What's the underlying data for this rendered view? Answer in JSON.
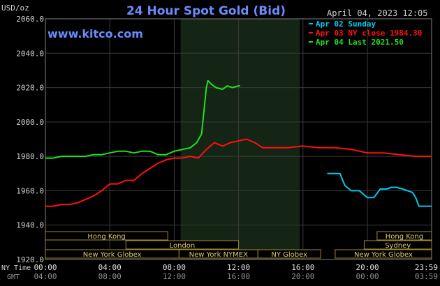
{
  "chart_data": {
    "type": "line",
    "title": "24 Hour Spot Gold (Bid)",
    "source": "www.kitco.com",
    "timestamp": "April 04, 2023 12:05",
    "ylabel": "USD/oz",
    "ylim": [
      1920,
      2060
    ],
    "y_ticks": [
      "2060.0",
      "2040.0",
      "2020.0",
      "2000.0",
      "1980.0",
      "1960.0",
      "1940.0",
      "1920.0"
    ],
    "x_row_label": "NY Time",
    "x_ticks_ny": [
      "00:00",
      "04:00",
      "08:00",
      "12:00",
      "16:00",
      "20:00",
      "23:59"
    ],
    "x_row_label_gmt": "GMT",
    "x_ticks_gmt": [
      "04:00",
      "08:00",
      "12:00",
      "16:00",
      "20:00",
      "00:00",
      "03:59"
    ],
    "grid": true,
    "legend_position": "top-right",
    "highlight_band_hours": [
      8.4,
      15.8
    ],
    "series": [
      {
        "name": "Apr 02 Sunday",
        "color": "#00c8f0",
        "x": [
          17.5,
          18.0,
          18.3,
          18.6,
          19.0,
          19.5,
          20.0,
          20.4,
          20.8,
          21.2,
          21.5,
          21.8,
          22.2,
          22.5,
          22.8,
          23.0,
          23.2,
          23.5,
          23.99
        ],
        "y": [
          1970,
          1970,
          1970,
          1963,
          1960,
          1960,
          1956,
          1956,
          1961,
          1961,
          1962,
          1962,
          1961,
          1960,
          1959,
          1956,
          1951,
          1951,
          1951
        ]
      },
      {
        "name": "Apr 03 NY close 1984.30",
        "color": "#ff1010",
        "x": [
          0,
          0.5,
          1,
          1.5,
          2,
          2.5,
          3,
          3.5,
          4,
          4.5,
          5,
          5.5,
          6,
          6.5,
          7,
          7.5,
          8,
          8.5,
          9,
          9.5,
          10,
          10.5,
          11,
          11.5,
          12,
          12.5,
          13,
          13.5,
          14,
          15,
          16,
          17,
          18,
          19,
          20,
          21,
          22,
          23,
          23.99
        ],
        "y": [
          1951,
          1951,
          1952,
          1952,
          1953,
          1955,
          1957,
          1960,
          1964,
          1964,
          1966,
          1966,
          1970,
          1973,
          1976,
          1978,
          1979,
          1979,
          1980,
          1979,
          1984,
          1988,
          1986,
          1988,
          1989,
          1990,
          1988,
          1985,
          1985,
          1985,
          1986,
          1985,
          1985,
          1984,
          1982,
          1982,
          1981,
          1980,
          1980
        ]
      },
      {
        "name": "Apr 04 Last 2021.50",
        "color": "#20e020",
        "x": [
          0,
          0.5,
          1,
          1.5,
          2,
          2.5,
          3,
          3.5,
          4,
          4.5,
          5,
          5.5,
          6,
          6.5,
          7,
          7.5,
          8,
          8.5,
          9,
          9.4,
          9.7,
          10,
          10.1,
          10.3,
          10.6,
          11,
          11.3,
          11.6,
          12,
          12.1
        ],
        "y": [
          1979,
          1979,
          1980,
          1980,
          1980,
          1980,
          1981,
          1981,
          1982,
          1983,
          1983,
          1982,
          1983,
          1983,
          1981,
          1981,
          1983,
          1984,
          1985,
          1988,
          1993,
          2020,
          2024,
          2022,
          2020,
          2019,
          2021,
          2020,
          2021,
          2021
        ]
      }
    ],
    "market_sessions": [
      {
        "label": "Hong Kong",
        "start": 0,
        "end": 7.6
      },
      {
        "label": "Hong Kong",
        "start": 20.6,
        "end": 23.99
      },
      {
        "label": "London",
        "start": 5.0,
        "end": 12.0
      },
      {
        "label": "Sydney",
        "start": 19.8,
        "end": 23.99
      },
      {
        "label": "New York Globex",
        "start": 0,
        "end": 8.3
      },
      {
        "label": "New York NYMEX",
        "start": 8.3,
        "end": 13.2
      },
      {
        "label": "NY Globex",
        "start": 13.2,
        "end": 17.1
      },
      {
        "label": "New York Globex",
        "start": 18.0,
        "end": 23.99
      }
    ]
  }
}
